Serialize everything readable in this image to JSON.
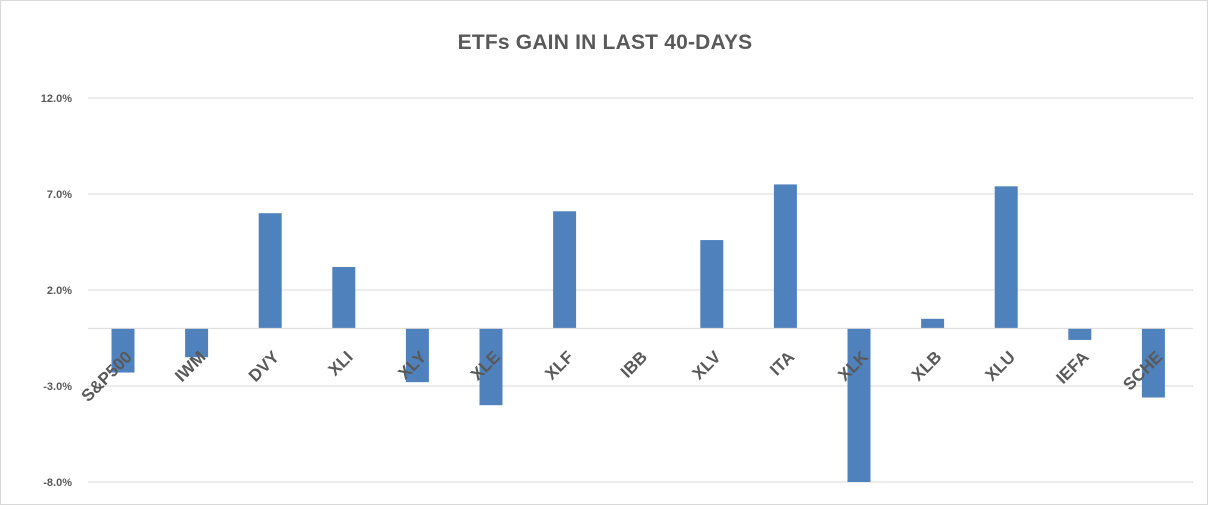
{
  "chart_data": {
    "type": "bar",
    "title": "ETFs GAIN IN LAST 40-DAYS",
    "categories": [
      "S&P500",
      "IWM",
      "DVY",
      "XLI",
      "XLY",
      "XLE",
      "XLF",
      "IBB",
      "XLV",
      "ITA",
      "XLK",
      "XLB",
      "XLU",
      "IEFA",
      "SCHE"
    ],
    "series": [
      {
        "values": [
          -2.3,
          -1.5,
          6.0,
          3.2,
          -2.8,
          -4.0,
          6.1,
          0.0,
          4.6,
          7.5,
          -8.0,
          0.5,
          7.4,
          -0.6,
          -3.6
        ]
      }
    ],
    "ylim": [
      -8.0,
      12.0
    ],
    "yticks": [
      "12.0%",
      "7.0%",
      "2.0%",
      "-3.0%",
      "-8.0%"
    ],
    "ytick_values": [
      12.0,
      7.0,
      2.0,
      -3.0,
      -8.0
    ],
    "grid": true,
    "colors": {
      "bar": "#4f81bd",
      "grid": "#d9d9d9",
      "text": "#595959"
    }
  }
}
